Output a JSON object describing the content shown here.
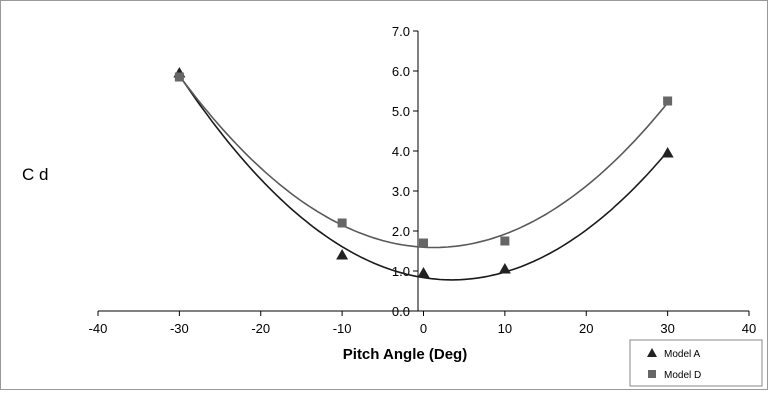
{
  "chart_data": {
    "type": "scatter",
    "xlabel": "Pitch Angle (Deg)",
    "ylabel": "C d",
    "xlim": [
      -40,
      40
    ],
    "ylim": [
      0,
      7
    ],
    "x_ticks": [
      -40,
      -30,
      -20,
      -10,
      0,
      10,
      20,
      30,
      40
    ],
    "x_tick_labels": [
      "-40",
      "-30",
      "-20",
      "-10",
      "0",
      "10",
      "20",
      "30",
      "40"
    ],
    "y_ticks": [
      0,
      1,
      2,
      3,
      4,
      5,
      6,
      7
    ],
    "y_tick_labels": [
      "0.0",
      "1.0",
      "2.0",
      "3.0",
      "4.0",
      "5.0",
      "6.0",
      "7.0"
    ],
    "grid": false,
    "legend_position": "bottom-right",
    "trendline": "quadratic",
    "series": [
      {
        "name": "Model A",
        "marker": "triangle",
        "color": "#222222",
        "line_color": "#1a1a1a",
        "x": [
          -30,
          -10,
          0,
          10,
          30
        ],
        "y": [
          5.95,
          1.4,
          0.95,
          1.05,
          3.95
        ]
      },
      {
        "name": "Model D",
        "marker": "square",
        "color": "#666666",
        "line_color": "#5a5a5a",
        "x": [
          -30,
          -10,
          0,
          10,
          30
        ],
        "y": [
          5.85,
          2.2,
          1.7,
          1.75,
          5.25
        ]
      }
    ]
  }
}
